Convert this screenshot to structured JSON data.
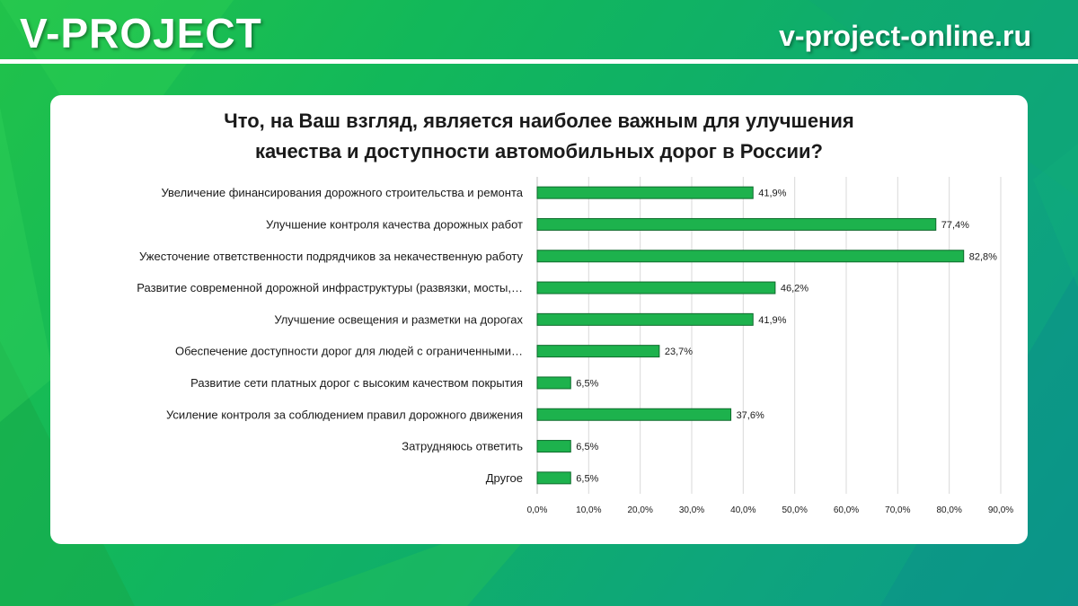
{
  "header": {
    "brand": "V-PROJECT",
    "site": "v-project-online.ru"
  },
  "colors": {
    "bar_fill": "#1db24d",
    "bar_stroke": "#0e6b2c",
    "grid": "#d9d9d9",
    "text": "#1a1a1a"
  },
  "chart_data": {
    "type": "bar",
    "orientation": "horizontal",
    "title_lines": [
      "Что, на Ваш взгляд, является наиболее важным для улучшения",
      "качества и доступности автомобильных дорог в России?"
    ],
    "categories": [
      "Увеличение финансирования дорожного строительства и ремонта",
      "Улучшение контроля качества дорожных работ",
      "Ужесточение ответственности подрядчиков за некачественную работу",
      "Развитие современной дорожной инфраструктуры (развязки, мосты,…",
      "Улучшение освещения и разметки на дорогах",
      "Обеспечение доступности дорог для людей с ограниченными…",
      "Развитие сети платных дорог с высоким качеством покрытия",
      "Усиление контроля за соблюдением правил дорожного движения",
      "Затрудняюсь ответить",
      "Другое"
    ],
    "values": [
      41.9,
      77.4,
      82.8,
      46.2,
      41.9,
      23.7,
      6.5,
      37.6,
      6.5,
      6.5
    ],
    "value_labels": [
      "41,9%",
      "77,4%",
      "82,8%",
      "46,2%",
      "41,9%",
      "23,7%",
      "6,5%",
      "37,6%",
      "6,5%",
      "6,5%"
    ],
    "xlim": [
      0,
      90
    ],
    "x_ticks": [
      "0,0%",
      "10,0%",
      "20,0%",
      "30,0%",
      "40,0%",
      "50,0%",
      "60,0%",
      "70,0%",
      "80,0%",
      "90,0%"
    ],
    "grid": true,
    "legend": false
  }
}
